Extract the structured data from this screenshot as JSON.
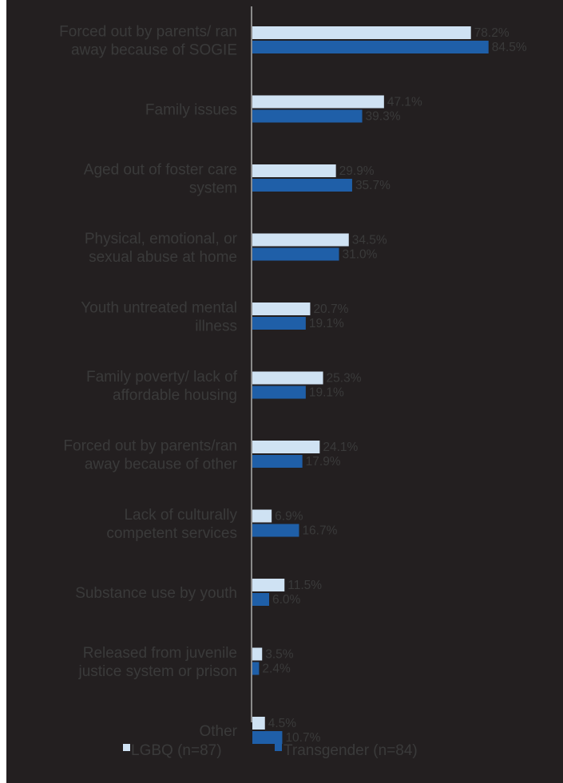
{
  "chart_data": {
    "type": "bar",
    "orientation": "horizontal",
    "categories": [
      [
        "Forced out by parents/ ran",
        "away because of SOGIE"
      ],
      [
        "Family issues"
      ],
      [
        "Aged out of foster care",
        "system"
      ],
      [
        "Physical, emotional, or",
        "sexual abuse at home"
      ],
      [
        "Youth untreated mental",
        "illness"
      ],
      [
        "Family poverty/ lack of",
        "affordable housing"
      ],
      [
        "Forced out by parents/ran",
        "away because of other"
      ],
      [
        "Lack of culturally",
        "competent services"
      ],
      [
        "Substance use by youth"
      ],
      [
        "Released from juvenile",
        "justice system or prison"
      ],
      [
        "Other"
      ]
    ],
    "series": [
      {
        "name": "LGBQ (n=87)",
        "color": "#cfe2f3",
        "values": [
          78.2,
          47.1,
          29.9,
          34.5,
          20.7,
          25.3,
          24.1,
          6.9,
          11.5,
          3.5,
          4.5
        ],
        "labels": [
          "78.2%",
          "47.1%",
          "29.9%",
          "34.5%",
          "20.7%",
          "25.3%",
          "24.1%",
          "6.9%",
          "11.5%",
          "3.5%",
          "4.5%"
        ]
      },
      {
        "name": "Transgender (n=84)",
        "color": "#1f5fa8",
        "values": [
          84.5,
          39.3,
          35.7,
          31.0,
          19.1,
          19.1,
          17.9,
          16.7,
          6.0,
          2.4,
          10.7
        ],
        "labels": [
          "84.5%",
          "39.3%",
          "35.7%",
          "31.0%",
          "19.1%",
          "19.1%",
          "17.9%",
          "16.7%",
          "6.0%",
          "2.4%",
          "10.7%"
        ]
      }
    ],
    "xlim": [
      0,
      100
    ],
    "legend_position": "bottom",
    "grid": false
  }
}
